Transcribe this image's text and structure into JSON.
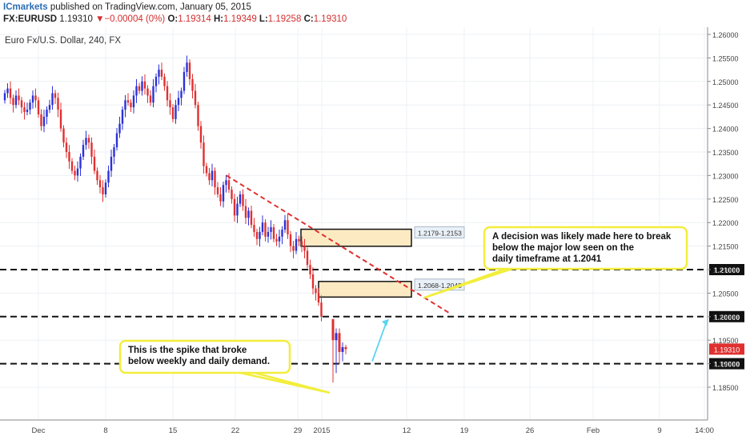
{
  "header": {
    "publisher": "ICmarkets",
    "published_text": "published on TradingView.com, January 05, 2015",
    "symbol": "FX:EURUSD",
    "last": "1.19310",
    "change": "▼−0.00004 (0%)",
    "open_label": "O:",
    "open": "1.19314",
    "high_label": "H:",
    "high": "1.19349",
    "low_label": "L:",
    "low": "1.19258",
    "close_label": "C:",
    "close": "1.19310"
  },
  "chart_data": {
    "type": "candlestick",
    "title": "Euro Fx/U.S. Dollar, 240, FX",
    "ylim": [
      1.183,
      1.262
    ],
    "y_ticks": [
      "1.26000",
      "1.25500",
      "1.25000",
      "1.24500",
      "1.24000",
      "1.23500",
      "1.23000",
      "1.22500",
      "1.22000",
      "1.21500",
      "1.21000",
      "1.20500",
      "1.20000",
      "1.19500",
      "1.19000",
      "1.18500"
    ],
    "x_ticks": [
      "Dec",
      "8",
      "15",
      "22",
      "29",
      "2015",
      "12",
      "19",
      "26",
      "Feb",
      "9",
      "14:00"
    ],
    "current_price": "1.19310",
    "horizontal_levels": [
      {
        "price": 1.21,
        "label": "1.21000"
      },
      {
        "price": 1.2,
        "label": "1.20000"
      },
      {
        "price": 1.19,
        "label": "1.19000"
      }
    ],
    "zones": [
      {
        "label": "1.2179-1.2153",
        "top": 1.2179,
        "bottom": 1.2153
      },
      {
        "label": "1.2068-1.2045",
        "top": 1.2068,
        "bottom": 1.2045
      }
    ],
    "annotations": [
      {
        "id": "decision",
        "lines": [
          "A decision was likely made here to break",
          "below the major low seen on the",
          "daily timeframe at 1.2041"
        ]
      },
      {
        "id": "spike",
        "lines": [
          "This is the spike that broke",
          "below weekly and daily demand."
        ]
      }
    ],
    "colors": {
      "up": "#2c32d6",
      "down": "#e03030",
      "trendline": "#e03030",
      "arrow": "#5bd4ee",
      "zone_fill": "#fbe6b8",
      "note_border": "#f2ee3c",
      "price_tag": "#e03030"
    }
  }
}
